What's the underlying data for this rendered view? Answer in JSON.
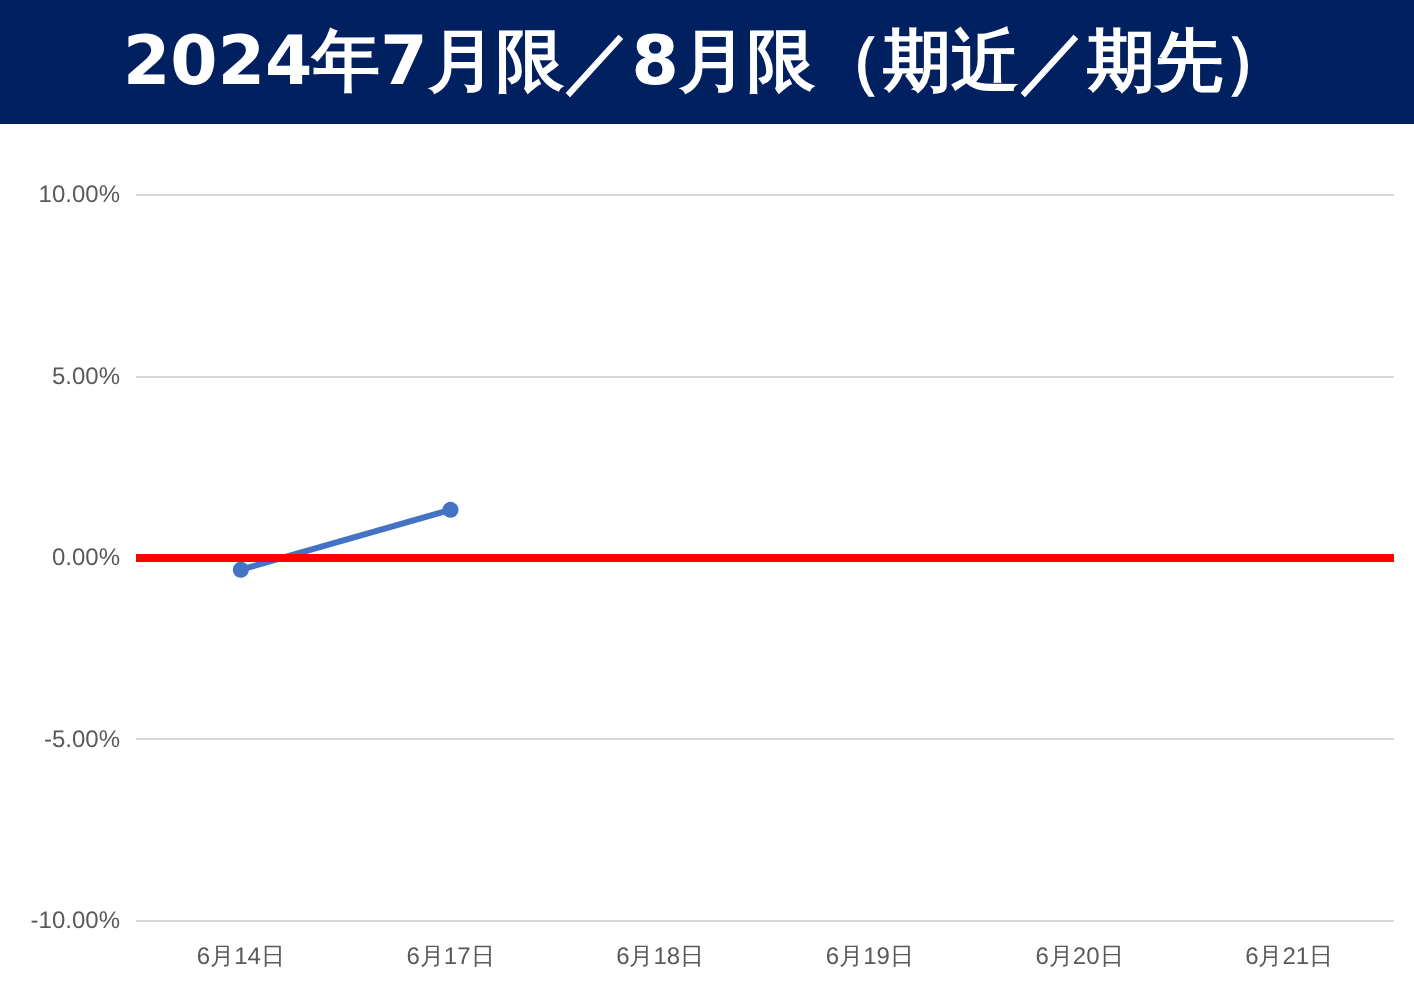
{
  "chart_data": {
    "type": "line",
    "title": "2024年7月限／8月限（期近／期先）",
    "categories": [
      "6月14日",
      "6月17日",
      "6月18日",
      "6月19日",
      "6月20日",
      "6月21日"
    ],
    "series": [
      {
        "color": "#4472c4",
        "values": [
          -0.35,
          1.3,
          null,
          null,
          null,
          null
        ]
      }
    ],
    "ylim": [
      -10,
      10
    ],
    "yticks": [
      {
        "value": -10,
        "label": "-10.00%"
      },
      {
        "value": -5,
        "label": "-5.00%"
      },
      {
        "value": 0,
        "label": "0.00%"
      },
      {
        "value": 5,
        "label": "5.00%"
      },
      {
        "value": 10,
        "label": "10.00%"
      }
    ],
    "ref_lines": [
      {
        "axis": "y",
        "value": 0,
        "color": "#ff0000"
      }
    ],
    "grid": "y",
    "marker": "circle",
    "line_style": "solid"
  }
}
